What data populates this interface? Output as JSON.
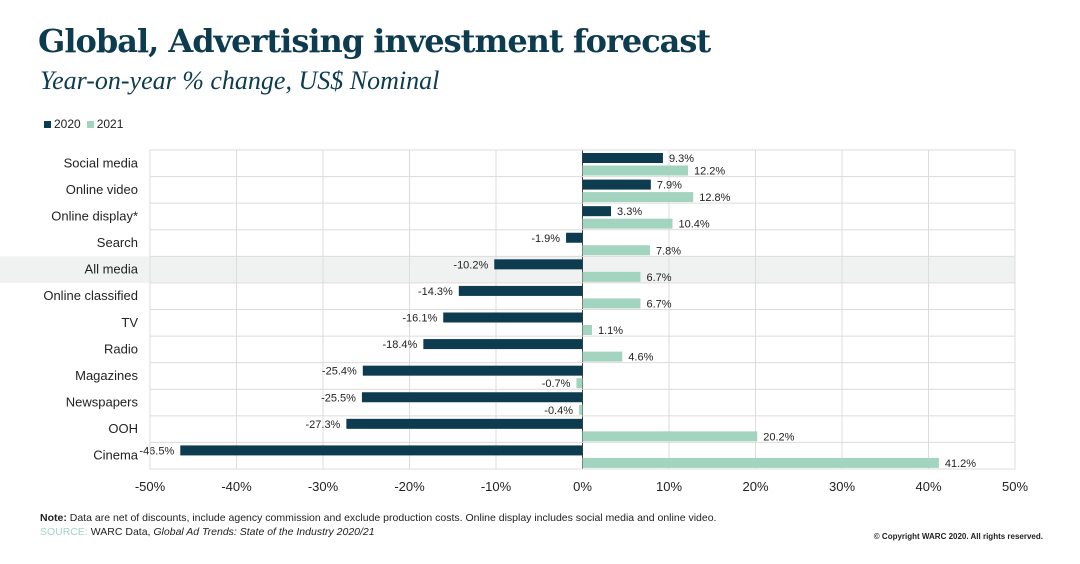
{
  "header": {
    "title": "Global, Advertising investment forecast",
    "subtitle": "Year-on-year % change, US$ Nominal"
  },
  "colors": {
    "s2020": "#0d3b4f",
    "s2021": "#a3d4c0",
    "highlight": "#f0f2f2",
    "grid": "#dcdcdc"
  },
  "chart_data": {
    "type": "bar",
    "orientation": "horizontal",
    "title": "Global, Advertising investment forecast",
    "subtitle": "Year-on-year % change, US$ Nominal",
    "categories": [
      "Social media",
      "Online video",
      "Online display*",
      "Search",
      "All media",
      "Online classified",
      "TV",
      "Radio",
      "Magazines",
      "Newspapers",
      "OOH",
      "Cinema"
    ],
    "highlighted_category": "All media",
    "series": [
      {
        "name": "2020",
        "values": [
          9.3,
          7.9,
          3.3,
          -1.9,
          -10.2,
          -14.3,
          -16.1,
          -18.4,
          -25.4,
          -25.5,
          -27.3,
          -46.5
        ]
      },
      {
        "name": "2021",
        "values": [
          12.2,
          12.8,
          10.4,
          7.8,
          6.7,
          6.7,
          1.1,
          4.6,
          -0.7,
          -0.4,
          20.2,
          41.2
        ]
      }
    ],
    "xlim": [
      -50,
      50
    ],
    "xticks": [
      -50,
      -40,
      -30,
      -20,
      -10,
      0,
      10,
      20,
      30,
      40,
      50
    ],
    "xtick_labels": [
      "-50%",
      "-40%",
      "-30%",
      "-20%",
      "-10%",
      "0%",
      "10%",
      "20%",
      "30%",
      "40%",
      "50%"
    ],
    "legend": "top-left",
    "grid": true
  },
  "footer": {
    "note_label": "Note:",
    "note_text": " Data are net of discounts, include agency commission and exclude production costs. Online display includes social media and online video.",
    "source_label": "SOURCE:",
    "source_text": " WARC Data, ",
    "source_italic": "Global Ad Trends: State of the Industry 2020/21",
    "copyright": "© Copyright WARC 2020. All rights reserved."
  }
}
